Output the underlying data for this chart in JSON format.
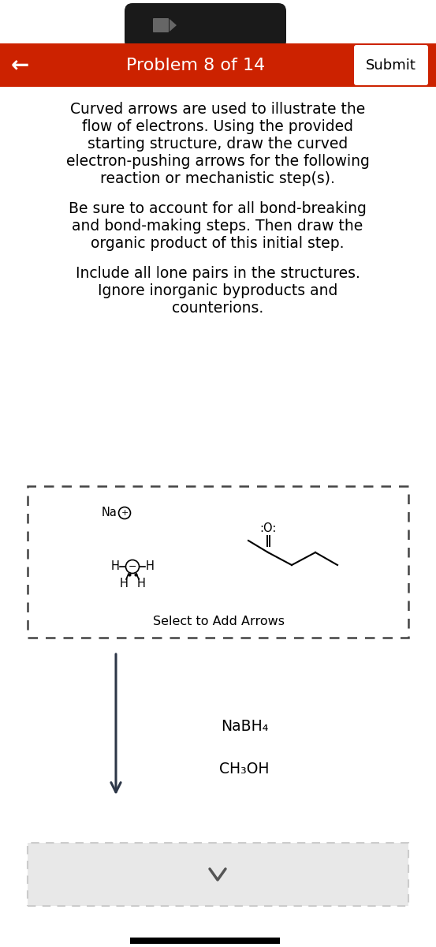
{
  "bg_color": "#ffffff",
  "header_color": "#cc2200",
  "header_text": "Problem 8 of 14",
  "header_text_color": "#ffffff",
  "submit_text": "Submit",
  "back_arrow": "←",
  "title_lines": [
    "Curved arrows are used to illustrate the",
    "flow of electrons. Using the provided",
    "starting structure, draw the curved",
    "electron-pushing arrows for the following",
    "reaction or mechanistic step(s)."
  ],
  "body_lines_1": [
    "Be sure to account for all bond-breaking",
    "and bond-making steps. Then draw the",
    "organic product of this initial step."
  ],
  "body_lines_2": [
    "Include all lone pairs in the structures.",
    "Ignore inorganic byproducts and",
    "counterions."
  ],
  "reagent_line1": "NaBH₄",
  "reagent_line2": "CH₃OH",
  "select_text": "Select to Add Arrows",
  "na_label": "Na ⊕",
  "camera_bar_color": "#1a1a1a",
  "arrow_color": "#2d3748",
  "dashed_box_color": "#444444",
  "bottom_box_color": "#cccccc",
  "bottom_box_bg": "#e8e8e8"
}
